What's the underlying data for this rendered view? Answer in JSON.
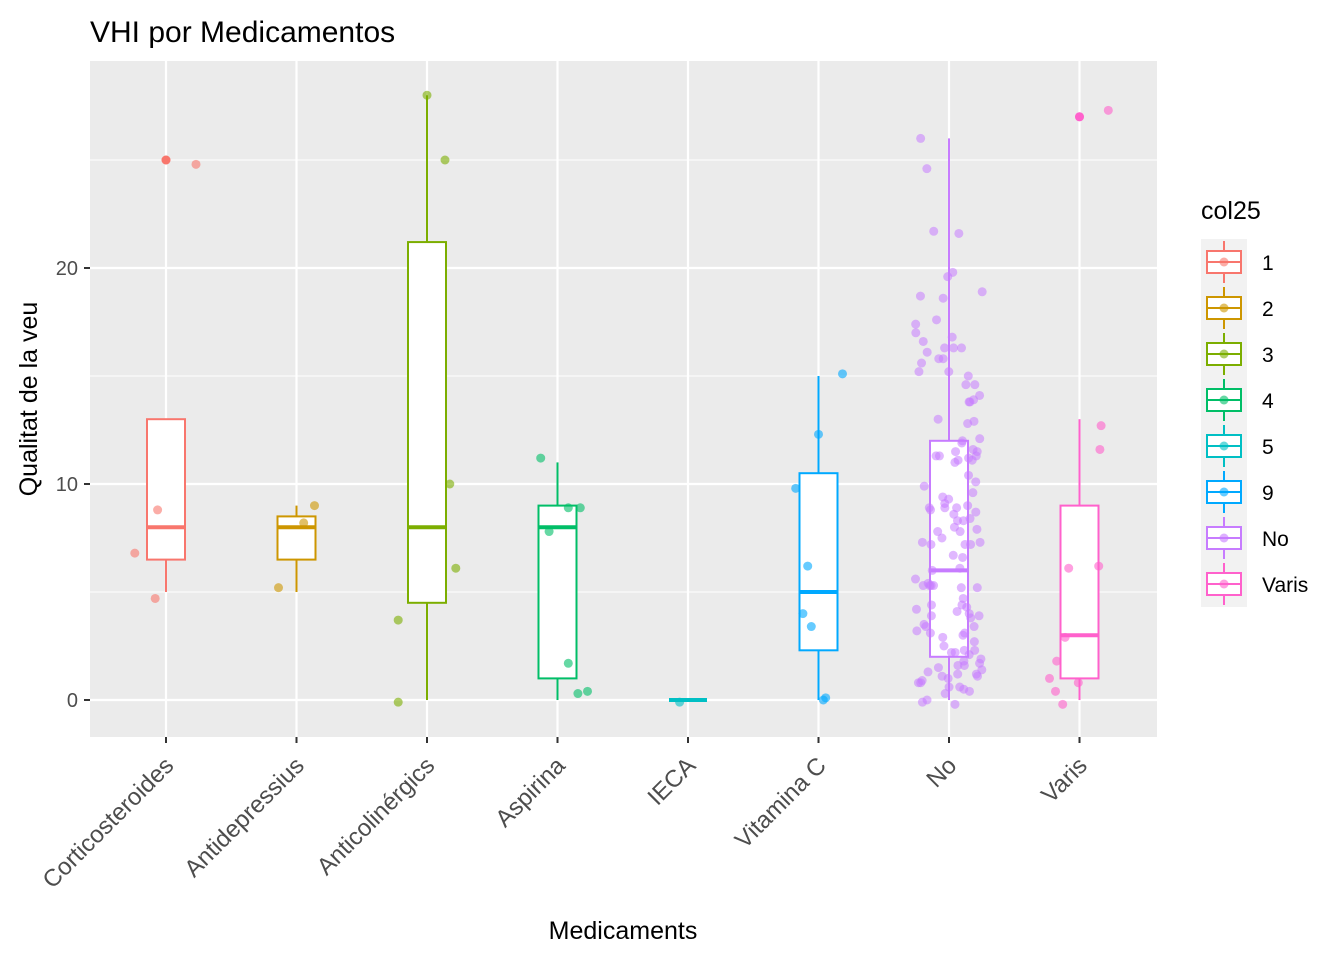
{
  "chart_data": {
    "type": "boxplot",
    "title": "VHI por Medicamentos",
    "xlabel": "Medicaments",
    "ylabel": "Qualitat de la veu",
    "ylim": [
      -1.8,
      29.8
    ],
    "y_ticks": [
      0,
      10,
      20
    ],
    "grid": true,
    "legend": {
      "title": "col25",
      "position": "right",
      "entries": [
        {
          "label": "1",
          "color": "#F8766D"
        },
        {
          "label": "2",
          "color": "#CD9600"
        },
        {
          "label": "3",
          "color": "#7CAE00"
        },
        {
          "label": "4",
          "color": "#00BE67"
        },
        {
          "label": "5",
          "color": "#00BFC4"
        },
        {
          "label": "9",
          "color": "#00A9FF"
        },
        {
          "label": "No",
          "color": "#C77CFF"
        },
        {
          "label": "Varis",
          "color": "#FF61CC"
        }
      ]
    },
    "categories": [
      "Corticosteroides",
      "Antidepressius",
      "Anticolinérgics",
      "Aspirina",
      "IECA",
      "Vitamina C",
      "No",
      "Varis"
    ],
    "boxes": [
      {
        "category": "Corticosteroides",
        "group": "1",
        "color": "#F8766D",
        "min": 5,
        "q1": 6.5,
        "median": 8,
        "q3": 13,
        "max": 13,
        "outliers": [
          25
        ]
      },
      {
        "category": "Antidepressius",
        "group": "2",
        "color": "#CD9600",
        "min": 5,
        "q1": 6.5,
        "median": 8,
        "q3": 8.5,
        "max": 9,
        "outliers": []
      },
      {
        "category": "Anticolinérgics",
        "group": "3",
        "color": "#7CAE00",
        "min": 0,
        "q1": 4.5,
        "median": 8,
        "q3": 21.2,
        "max": 28,
        "outliers": []
      },
      {
        "category": "Aspirina",
        "group": "4",
        "color": "#00BE67",
        "min": 0,
        "q1": 1,
        "median": 8,
        "q3": 9,
        "max": 11,
        "outliers": []
      },
      {
        "category": "IECA",
        "group": "5",
        "color": "#00BFC4",
        "min": 0,
        "q1": 0,
        "median": 0,
        "q3": 0,
        "max": 0,
        "outliers": []
      },
      {
        "category": "Vitamina C",
        "group": "9",
        "color": "#00A9FF",
        "min": 0,
        "q1": 2.3,
        "median": 5,
        "q3": 10.5,
        "max": 15,
        "outliers": []
      },
      {
        "category": "No",
        "group": "No",
        "color": "#C77CFF",
        "min": 0,
        "q1": 2,
        "median": 6,
        "q3": 12,
        "max": 26,
        "outliers": []
      },
      {
        "category": "Varis",
        "group": "Varis",
        "color": "#FF61CC",
        "min": 0,
        "q1": 1,
        "median": 3,
        "q3": 9,
        "max": 13,
        "outliers": [
          27
        ]
      }
    ],
    "jitter_points": [
      {
        "category": "Corticosteroides",
        "points": [
          [
            -0.26,
            6.8
          ],
          [
            -0.09,
            4.7
          ],
          [
            -0.07,
            8.8
          ],
          [
            0.0,
            25
          ],
          [
            0.25,
            24.8
          ]
        ]
      },
      {
        "category": "Antidepressius",
        "points": [
          [
            -0.15,
            5.2
          ],
          [
            0.06,
            8.2
          ],
          [
            0.15,
            9.0
          ]
        ]
      },
      {
        "category": "Anticolinérgics",
        "points": [
          [
            -0.24,
            3.7
          ],
          [
            -0.24,
            -0.1
          ],
          [
            0.0,
            28
          ],
          [
            0.15,
            25
          ],
          [
            0.19,
            10.0
          ],
          [
            0.24,
            6.1
          ]
        ]
      },
      {
        "category": "Aspirina",
        "points": [
          [
            -0.14,
            11.2
          ],
          [
            -0.07,
            7.8
          ],
          [
            0.09,
            8.9
          ],
          [
            0.19,
            8.9
          ],
          [
            0.09,
            1.7
          ],
          [
            0.17,
            0.3
          ],
          [
            0.25,
            0.4
          ]
        ]
      },
      {
        "category": "IECA",
        "points": [
          [
            -0.07,
            -0.1
          ]
        ]
      },
      {
        "category": "Vitamina C",
        "points": [
          [
            -0.19,
            9.8
          ],
          [
            0.0,
            12.3
          ],
          [
            0.2,
            15.1
          ],
          [
            -0.09,
            6.2
          ],
          [
            -0.13,
            4.0
          ],
          [
            -0.06,
            3.4
          ],
          [
            0.04,
            0.0
          ],
          [
            0.06,
            0.1
          ]
        ]
      },
      {
        "category": "Varis",
        "points": [
          [
            0.0,
            27
          ],
          [
            0.24,
            27.3
          ],
          [
            0.18,
            12.7
          ],
          [
            0.17,
            11.6
          ],
          [
            0.16,
            6.2
          ],
          [
            -0.09,
            6.1
          ],
          [
            -0.25,
            1.0
          ],
          [
            -0.19,
            1.8
          ],
          [
            -0.2,
            0.4
          ],
          [
            -0.12,
            2.9
          ],
          [
            -0.14,
            -0.2
          ],
          [
            -0.01,
            0.8
          ]
        ]
      }
    ]
  }
}
